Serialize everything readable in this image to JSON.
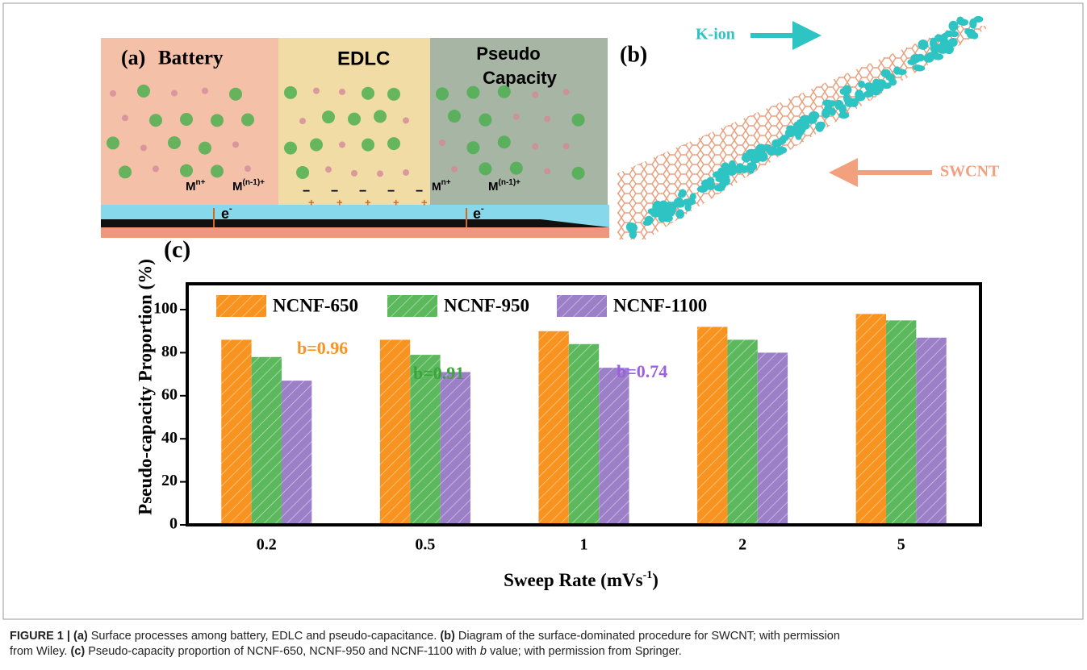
{
  "panels": {
    "a": {
      "label": "(a)",
      "regions": [
        "Battery",
        "EDLC",
        "Pseudo",
        "Capacity"
      ],
      "ion": "M",
      "ion_sup": [
        "n+",
        "(n-1)+"
      ],
      "electron": "e",
      "electron_sup": "-",
      "charges": [
        "−",
        "+"
      ]
    },
    "b": {
      "label": "(b)",
      "ion_label": "K-ion",
      "tube_label": "SWCNT"
    }
  },
  "chart_data": {
    "type": "bar",
    "panel_label": "(c)",
    "y_label": "Pseudo-capacity Proportion (%)",
    "x_label": {
      "text": "Sweep Rate (mVs",
      "sup": "-1",
      "tail": ")"
    },
    "categories": [
      "0.2",
      "0.5",
      "1",
      "2",
      "5"
    ],
    "series": [
      {
        "name": "NCNF-650",
        "color": "#f7931e",
        "values": [
          86,
          86,
          90,
          92,
          98
        ]
      },
      {
        "name": "NCNF-950",
        "color": "#5cb85c",
        "values": [
          78,
          79,
          84,
          86,
          95
        ]
      },
      {
        "name": "NCNF-1100",
        "color": "#9b7fc7",
        "values": [
          67,
          71,
          73,
          80,
          87
        ]
      }
    ],
    "annotations": [
      {
        "text": "b=0.96",
        "color": "#f7931e"
      },
      {
        "text": "b=0.91",
        "color": "#3aa53a"
      },
      {
        "text": "b=0.74",
        "color": "#9b5fe0"
      }
    ],
    "ylim": [
      0,
      112
    ],
    "yticks": [
      0,
      20,
      40,
      60,
      80,
      100
    ],
    "hatch": true
  },
  "caption": [
    [
      {
        "text": "FIGURE 1 | (a)",
        "bold": true
      },
      {
        "text": " Surface processes among battery, EDLC and pseudo-capacitance. "
      },
      {
        "text": "(b)",
        "bold": true
      },
      {
        "text": " Diagram of the surface-dominated procedure for SWCNT; with permission"
      }
    ],
    [
      {
        "text": "from Wiley. "
      },
      {
        "text": "(c)",
        "bold": true
      },
      {
        "text": " Pseudo-capacity proportion of NCNF-650, NCNF-950 and NCNF-1100 with "
      },
      {
        "text": "b",
        "italic": true
      },
      {
        "text": " value; with permission from Springer."
      }
    ]
  ]
}
